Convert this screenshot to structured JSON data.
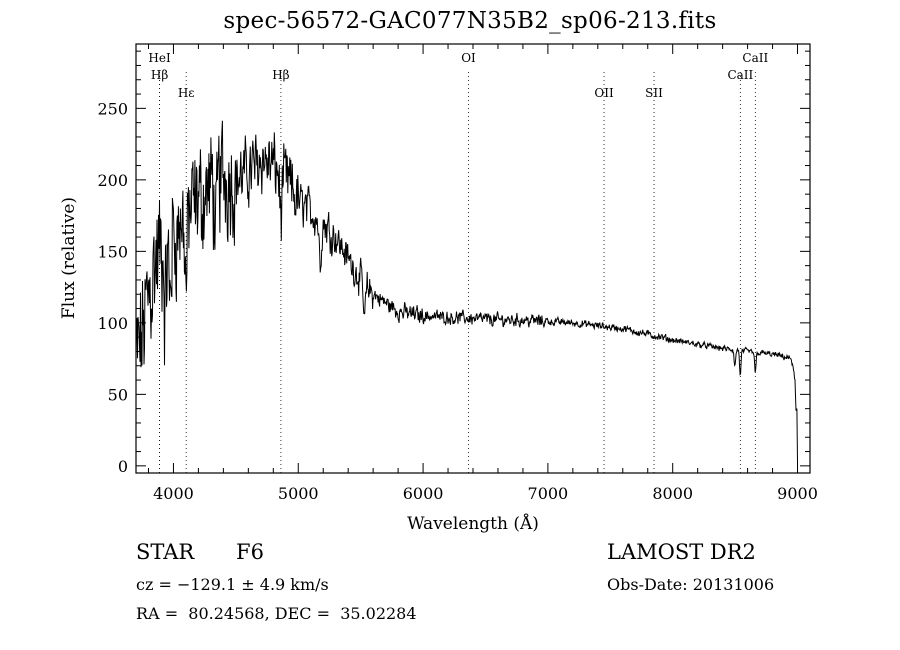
{
  "title": "spec-56572-GAC077N35B2_sp06-213.fits",
  "info": {
    "object_class": "STAR",
    "subclass": "F6",
    "survey": "LAMOST DR2",
    "redshift": "cz = −129.1 ± 4.9 km/s",
    "obs_date": "Obs-Date: 20131006",
    "coords": "RA =  80.24568, DEC =  35.02284"
  },
  "chart_data": {
    "type": "line",
    "title": "spec-56572-GAC077N35B2_sp06-213.fits",
    "xlabel": "Wavelength (Å)",
    "ylabel": "Flux (relative)",
    "xlim": [
      3700,
      9100
    ],
    "ylim": [
      -5,
      295
    ],
    "xticks": [
      4000,
      5000,
      6000,
      7000,
      8000,
      9000
    ],
    "yticks": [
      0,
      50,
      100,
      150,
      200,
      250
    ],
    "grid": false,
    "continuum_points": {
      "x": [
        3700,
        3750,
        3800,
        3850,
        3900,
        4000,
        4100,
        4200,
        4300,
        4400,
        4500,
        4600,
        4700,
        4800,
        4900,
        5000,
        5100,
        5200,
        5300,
        5400,
        5500,
        5600,
        5800,
        6000,
        6200,
        6400,
        6600,
        6800,
        7000,
        7200,
        7400,
        7600,
        7800,
        8000,
        8200,
        8400,
        8600,
        8800,
        8950,
        8980,
        9000
      ],
      "y": [
        70,
        90,
        120,
        140,
        150,
        160,
        175,
        185,
        195,
        205,
        200,
        205,
        215,
        210,
        200,
        185,
        178,
        170,
        160,
        145,
        130,
        120,
        108,
        105,
        104,
        103,
        102,
        102,
        101,
        100,
        98,
        96,
        92,
        88,
        85,
        82,
        80,
        78,
        75,
        60,
        5
      ]
    },
    "line_markers": [
      {
        "label": "Hβ",
        "x": 3889,
        "row": "top2"
      },
      {
        "label": "HeI",
        "x": 3889,
        "row": "top1"
      },
      {
        "label": "Hε",
        "x": 4102,
        "row": "mid"
      },
      {
        "label": "Hβ",
        "x": 4861,
        "row": "top2"
      },
      {
        "label": "OI",
        "x": 6364,
        "row": "top1"
      },
      {
        "label": "OII",
        "x": 7450,
        "row": "mid"
      },
      {
        "label": "SII",
        "x": 7850,
        "row": "mid"
      },
      {
        "label": "CaII",
        "x": 8542,
        "row": "top2"
      },
      {
        "label": "CaII",
        "x": 8662,
        "row": "top1"
      }
    ],
    "absorption_dips": [
      {
        "x": 3934,
        "depth": 45
      },
      {
        "x": 3969,
        "depth": 40
      },
      {
        "x": 4102,
        "depth": 50
      },
      {
        "x": 4340,
        "depth": 45
      },
      {
        "x": 4861,
        "depth": 30
      },
      {
        "x": 5175,
        "depth": 30
      },
      {
        "x": 5530,
        "depth": 25
      },
      {
        "x": 8498,
        "depth": 12
      },
      {
        "x": 8542,
        "depth": 18
      },
      {
        "x": 8662,
        "depth": 15
      }
    ]
  }
}
